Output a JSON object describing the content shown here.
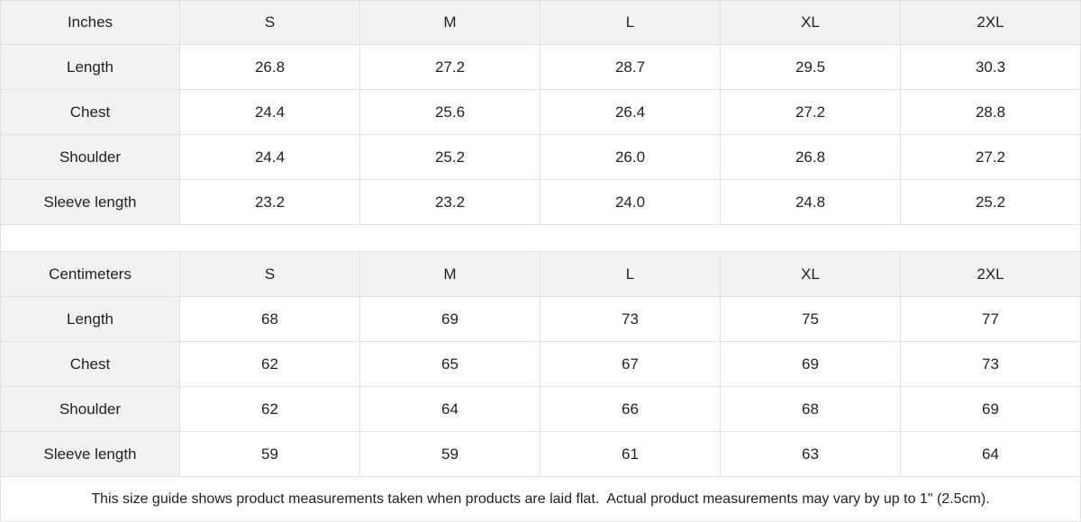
{
  "tables": [
    {
      "header": [
        "Inches",
        "S",
        "M",
        "L",
        "XL",
        "2XL"
      ],
      "rows": [
        [
          "Length",
          "26.8",
          "27.2",
          "28.7",
          "29.5",
          "30.3"
        ],
        [
          "Chest",
          "24.4",
          "25.6",
          "26.4",
          "27.2",
          "28.8"
        ],
        [
          "Shoulder",
          "24.4",
          "25.2",
          "26.0",
          "26.8",
          "27.2"
        ],
        [
          "Sleeve length",
          "23.2",
          "23.2",
          "24.0",
          "24.8",
          "25.2"
        ]
      ]
    },
    {
      "header": [
        "Centimeters",
        "S",
        "M",
        "L",
        "XL",
        "2XL"
      ],
      "rows": [
        [
          "Length",
          "68",
          "69",
          "73",
          "75",
          "77"
        ],
        [
          "Chest",
          "62",
          "65",
          "67",
          "69",
          "73"
        ],
        [
          "Shoulder",
          "62",
          "64",
          "66",
          "68",
          "69"
        ],
        [
          "Sleeve length",
          "59",
          "59",
          "61",
          "63",
          "64"
        ]
      ]
    }
  ],
  "note": "This size guide shows product measurements taken when products are laid flat.  Actual product measurements may vary by up to 1\" (2.5cm)."
}
